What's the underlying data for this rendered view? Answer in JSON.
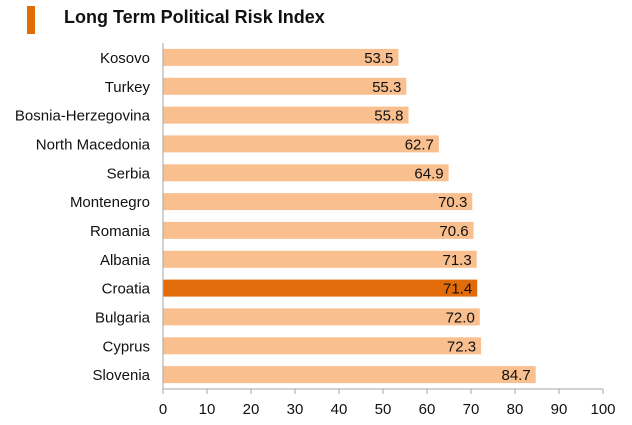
{
  "chart_data": {
    "type": "bar",
    "orientation": "horizontal",
    "title": "Long Term Political Risk Index",
    "categories": [
      "Kosovo",
      "Turkey",
      "Bosnia-Herzegovina",
      "North Macedonia",
      "Serbia",
      "Montenegro",
      "Romania",
      "Albania",
      "Croatia",
      "Bulgaria",
      "Cyprus",
      "Slovenia"
    ],
    "values": [
      53.5,
      55.3,
      55.8,
      62.7,
      64.9,
      70.3,
      70.6,
      71.3,
      71.4,
      72.0,
      72.3,
      84.7
    ],
    "value_labels": [
      "53.5",
      "55.3",
      "55.8",
      "62.7",
      "64.9",
      "70.3",
      "70.6",
      "71.3",
      "71.4",
      "72.0",
      "72.3",
      "84.7"
    ],
    "highlight": "Croatia",
    "xlim": [
      0,
      100
    ],
    "xticks": [
      "0",
      "10",
      "20",
      "30",
      "40",
      "50",
      "60",
      "70",
      "80",
      "90",
      "100"
    ],
    "xlabel": "",
    "ylabel": "",
    "grid": false
  },
  "colors": {
    "bar": "#FABF8F",
    "highlight": "#E36C0A",
    "accent": "#E36C0A",
    "axis": "#A6A6A6",
    "text": "#111111"
  }
}
